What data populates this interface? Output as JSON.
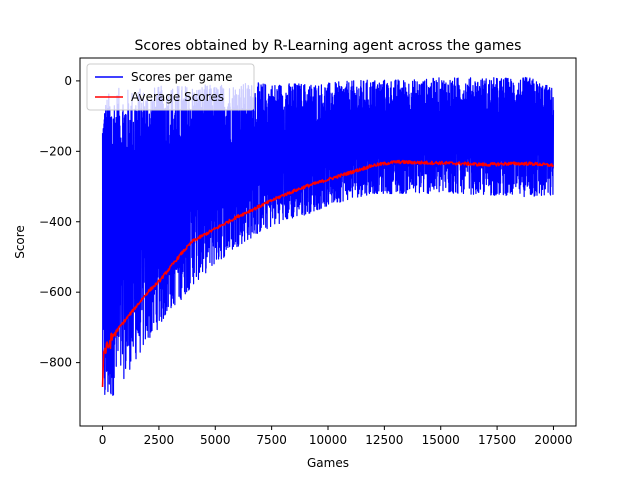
{
  "chart_data": {
    "type": "line",
    "title": "Scores obtained by R-Learning agent across the games",
    "xlabel": "Games",
    "ylabel": "Score",
    "xlim": [
      -1000,
      21000
    ],
    "ylim": [
      -980,
      65
    ],
    "xticks": [
      0,
      2500,
      5000,
      7500,
      10000,
      12500,
      15000,
      17500,
      20000
    ],
    "yticks": [
      0,
      -200,
      -400,
      -600,
      -800
    ],
    "legend_position": "top-left",
    "series": [
      {
        "name": "Scores per game",
        "color": "#0000ff",
        "band": {
          "x": [
            0,
            100,
            300,
            600,
            1000,
            1500,
            2000,
            2500,
            3000,
            3500,
            4000,
            5000,
            6000,
            7000,
            8000,
            9000,
            10000,
            11000,
            12000,
            13000,
            14000,
            15000,
            16000,
            17000,
            18000,
            19000,
            20000
          ],
          "low": [
            -935,
            -930,
            -910,
            -880,
            -840,
            -790,
            -740,
            -700,
            -650,
            -620,
            -580,
            -520,
            -470,
            -430,
            -400,
            -380,
            -355,
            -335,
            -320,
            -320,
            -320,
            -320,
            -320,
            -325,
            -325,
            -330,
            -330
          ],
          "high": [
            -60,
            -40,
            -30,
            -20,
            -20,
            -20,
            -15,
            -15,
            -10,
            -10,
            -10,
            -10,
            -5,
            -5,
            -5,
            -5,
            -5,
            0,
            5,
            5,
            5,
            10,
            10,
            10,
            10,
            10,
            -20
          ]
        }
      },
      {
        "name": "Average Scores",
        "color": "#ff0000",
        "x": [
          0,
          50,
          200,
          500,
          1000,
          1500,
          2000,
          2500,
          3000,
          3500,
          4000,
          5000,
          6000,
          7000,
          8000,
          9000,
          10000,
          11000,
          12000,
          12500,
          13000,
          14000,
          15000,
          16000,
          17000,
          18000,
          19000,
          20000
        ],
        "y": [
          -860,
          -770,
          -760,
          -720,
          -680,
          -640,
          -600,
          -570,
          -530,
          -490,
          -455,
          -420,
          -385,
          -355,
          -325,
          -300,
          -280,
          -260,
          -240,
          -235,
          -230,
          -232,
          -233,
          -235,
          -238,
          -235,
          -235,
          -240
        ]
      }
    ]
  }
}
